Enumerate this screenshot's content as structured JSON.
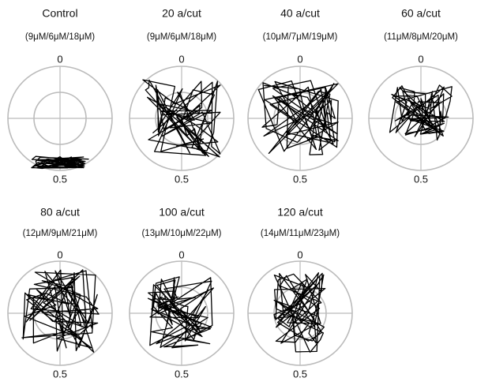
{
  "panels": [
    {
      "title": "Control",
      "subtitle": "(9μM/6μM/18μM)",
      "top_label": "0",
      "bottom_label": "0.5"
    },
    {
      "title": "20 a/cut",
      "subtitle": "(9μM/6μM/18μM)",
      "top_label": "0",
      "bottom_label": "0.5"
    },
    {
      "title": "40 a/cut",
      "subtitle": "(10μM/7μM/19μM)",
      "top_label": "0",
      "bottom_label": "0.5"
    },
    {
      "title": "60 a/cut",
      "subtitle": "(11μM/8μM/20μM)",
      "top_label": "0",
      "bottom_label": "0.5"
    },
    {
      "title": "80 a/cut",
      "subtitle": "(12μM/9μM/21μM)",
      "top_label": "0",
      "bottom_label": "0.5"
    },
    {
      "title": "100 a/cut",
      "subtitle": "(13μM/10μM/22μM)",
      "top_label": "0",
      "bottom_label": "0.5"
    },
    {
      "title": "120 a/cut",
      "subtitle": "(14μM/11μM/23μM)",
      "top_label": "0",
      "bottom_label": "0.5"
    }
  ]
}
